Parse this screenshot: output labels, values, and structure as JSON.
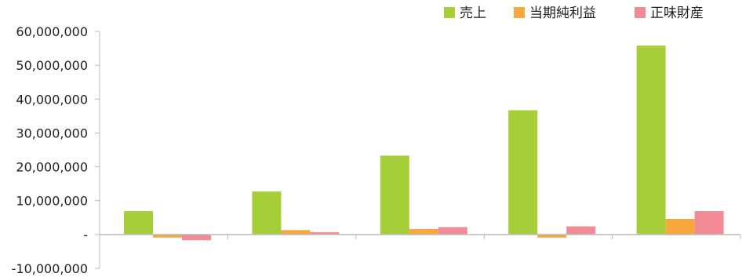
{
  "chart_data": {
    "type": "bar",
    "title": "",
    "xlabel": "",
    "ylabel": "",
    "categories": [
      "",
      "",
      "",
      "",
      ""
    ],
    "series": [
      {
        "name": "売上",
        "color": "#a6ce39",
        "values": [
          6900000,
          12700000,
          23300000,
          36700000,
          55800000
        ]
      },
      {
        "name": "当期純利益",
        "color": "#f7a73b",
        "values": [
          -900000,
          1300000,
          1600000,
          -900000,
          4600000
        ]
      },
      {
        "name": "正味財産",
        "color": "#f38b97",
        "values": [
          -1700000,
          700000,
          2200000,
          2400000,
          6900000
        ]
      }
    ],
    "ylim": [
      -10000000,
      60000000
    ],
    "yticks": [
      60000000,
      50000000,
      40000000,
      30000000,
      20000000,
      10000000,
      0,
      -10000000
    ],
    "ytick_labels": [
      "60,000,000",
      "50,000,000",
      "40,000,000",
      "30,000,000",
      "20,000,000",
      "10,000,000",
      "-",
      "-10,000,000"
    ],
    "grid": false,
    "legend_position": "top-right"
  }
}
